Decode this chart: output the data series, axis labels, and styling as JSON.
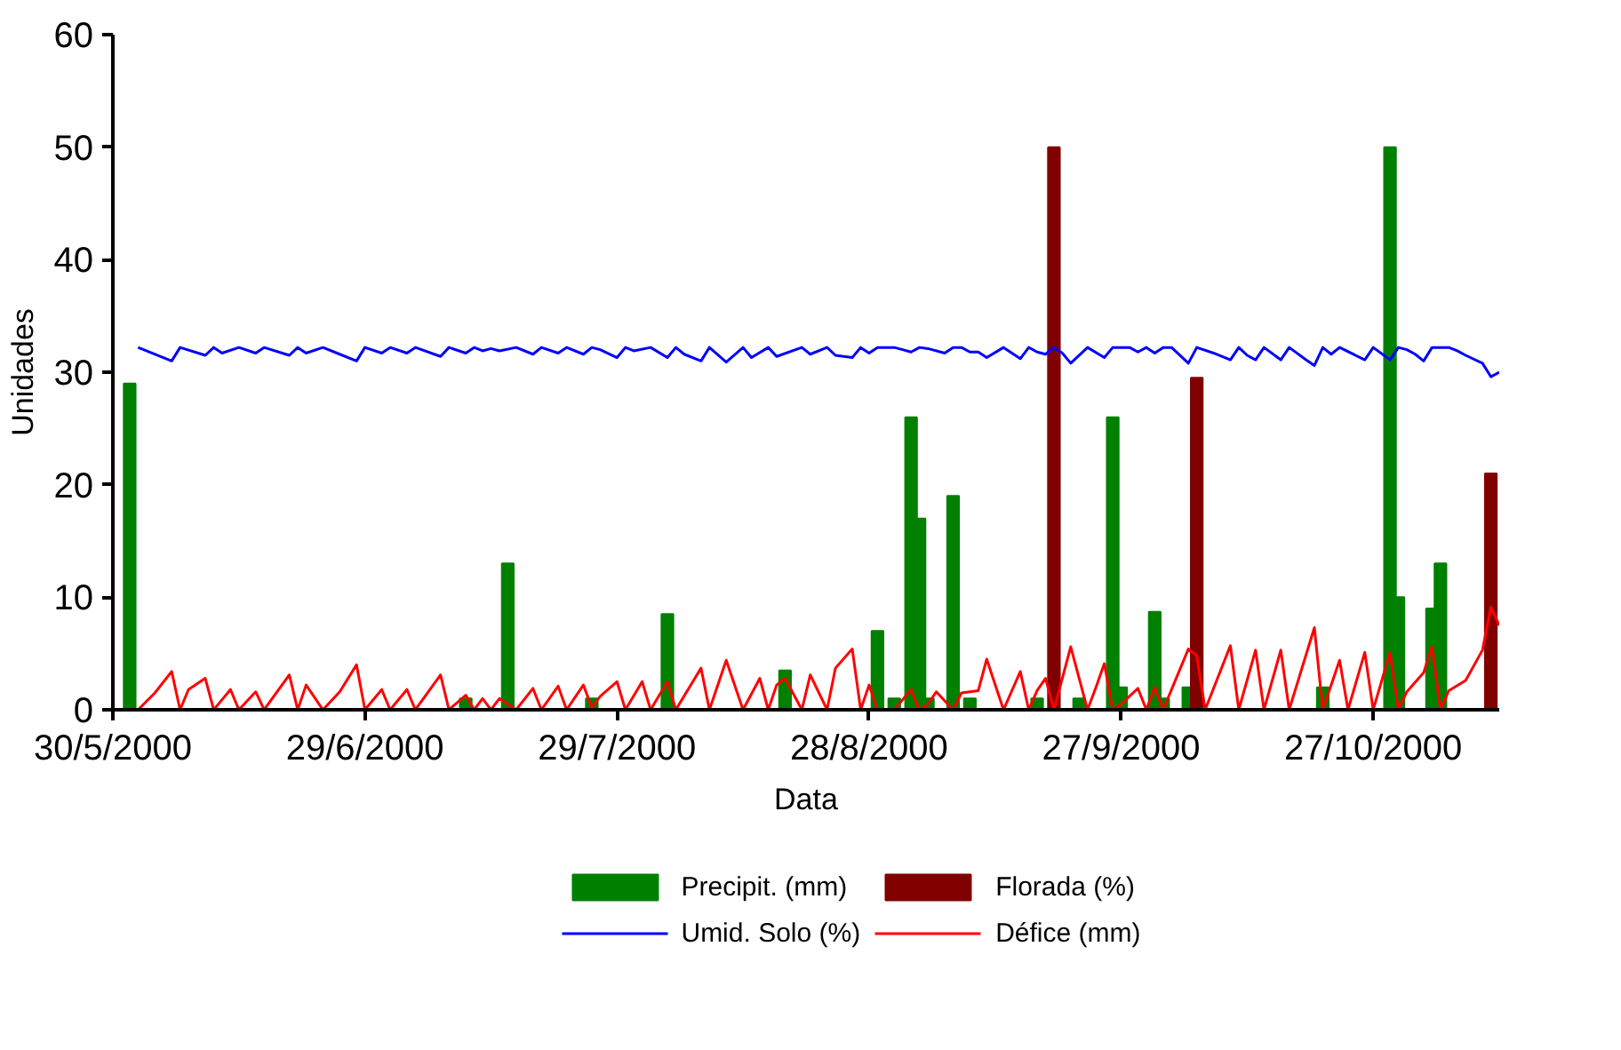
{
  "chart_data": {
    "type": "bar",
    "xlabel": "Data",
    "ylabel": "Unidades",
    "xlim": [
      "2000-05-30",
      "2000-11-11"
    ],
    "xticks": [
      {
        "value": "2000-05-30",
        "label": "30/5/2000"
      },
      {
        "value": "2000-06-29",
        "label": "29/6/2000"
      },
      {
        "value": "2000-07-29",
        "label": "29/7/2000"
      },
      {
        "value": "2000-08-28",
        "label": "28/8/2000"
      },
      {
        "value": "2000-09-27",
        "label": "27/9/2000"
      },
      {
        "value": "2000-10-27",
        "label": "27/10/2000"
      }
    ],
    "ylim": [
      0,
      60
    ],
    "yticks": [
      0,
      10,
      20,
      30,
      40,
      50,
      60
    ],
    "grid": false,
    "legend": "bottom",
    "series": [
      {
        "name": "Precipit. (mm)",
        "color": "#008000",
        "x": [
          "2000-06-01",
          "2000-07-11",
          "2000-07-16",
          "2000-07-26",
          "2000-08-04",
          "2000-08-18",
          "2000-08-29",
          "2000-08-31",
          "2000-09-02",
          "2000-09-03",
          "2000-09-04",
          "2000-09-07",
          "2000-09-09",
          "2000-09-17",
          "2000-09-22",
          "2000-09-26",
          "2000-09-27",
          "2000-10-01",
          "2000-10-02",
          "2000-10-05",
          "2000-10-21",
          "2000-10-29",
          "2000-10-30",
          "2000-11-03",
          "2000-11-04"
        ],
        "values": [
          29,
          1,
          13,
          1,
          8.5,
          3.5,
          7,
          1,
          26,
          17,
          1,
          19,
          1,
          1,
          1,
          26,
          2,
          8.7,
          1,
          2,
          2,
          50,
          10,
          9,
          13
        ]
      },
      {
        "name": "Florada (%)",
        "color": "#800000",
        "x": [
          "2000-09-19",
          "2000-10-06",
          "2000-11-10"
        ],
        "values": [
          50,
          29.5,
          21
        ]
      },
      {
        "name": "Umid. Solo (%)",
        "type": "line",
        "color": "#0000ff",
        "x": [
          "2000-06-02",
          "2000-06-06",
          "2000-06-07",
          "2000-06-10",
          "2000-06-11",
          "2000-06-12",
          "2000-06-14",
          "2000-06-16",
          "2000-06-17",
          "2000-06-20",
          "2000-06-21",
          "2000-06-22",
          "2000-06-24",
          "2000-06-26",
          "2000-06-28",
          "2000-06-29",
          "2000-07-01",
          "2000-07-02",
          "2000-07-04",
          "2000-07-05",
          "2000-07-08",
          "2000-07-09",
          "2000-07-11",
          "2000-07-12",
          "2000-07-13",
          "2000-07-14",
          "2000-07-15",
          "2000-07-17",
          "2000-07-19",
          "2000-07-20",
          "2000-07-22",
          "2000-07-23",
          "2000-07-25",
          "2000-07-26",
          "2000-07-27",
          "2000-07-29",
          "2000-07-30",
          "2000-07-31",
          "2000-08-02",
          "2000-08-04",
          "2000-08-05",
          "2000-08-06",
          "2000-08-08",
          "2000-08-09",
          "2000-08-11",
          "2000-08-13",
          "2000-08-14",
          "2000-08-16",
          "2000-08-17",
          "2000-08-20",
          "2000-08-21",
          "2000-08-23",
          "2000-08-24",
          "2000-08-26",
          "2000-08-27",
          "2000-08-28",
          "2000-08-29",
          "2000-08-31",
          "2000-09-02",
          "2000-09-03",
          "2000-09-04",
          "2000-09-06",
          "2000-09-07",
          "2000-09-08",
          "2000-09-09",
          "2000-09-10",
          "2000-09-11",
          "2000-09-13",
          "2000-09-15",
          "2000-09-16",
          "2000-09-17",
          "2000-09-18",
          "2000-09-19",
          "2000-09-20",
          "2000-09-21",
          "2000-09-23",
          "2000-09-25",
          "2000-09-26",
          "2000-09-28",
          "2000-09-29",
          "2000-09-30",
          "2000-10-01",
          "2000-10-02",
          "2000-10-03",
          "2000-10-05",
          "2000-10-06",
          "2000-10-08",
          "2000-10-10",
          "2000-10-11",
          "2000-10-12",
          "2000-10-13",
          "2000-10-14",
          "2000-10-16",
          "2000-10-17",
          "2000-10-19",
          "2000-10-20",
          "2000-10-21",
          "2000-10-22",
          "2000-10-23",
          "2000-10-26",
          "2000-10-27",
          "2000-10-29",
          "2000-10-30",
          "2000-10-31",
          "2000-11-01",
          "2000-11-02",
          "2000-11-03",
          "2000-11-05",
          "2000-11-06",
          "2000-11-07",
          "2000-11-09",
          "2000-11-10",
          "2000-11-11"
        ],
        "values": [
          32.2,
          31.0,
          32.2,
          31.5,
          32.2,
          31.7,
          32.2,
          31.7,
          32.2,
          31.5,
          32.2,
          31.7,
          32.2,
          31.6,
          31.0,
          32.2,
          31.7,
          32.2,
          31.7,
          32.2,
          31.4,
          32.2,
          31.7,
          32.2,
          31.9,
          32.1,
          31.9,
          32.2,
          31.6,
          32.2,
          31.7,
          32.2,
          31.6,
          32.2,
          32.0,
          31.3,
          32.2,
          31.9,
          32.2,
          31.3,
          32.2,
          31.6,
          31.0,
          32.2,
          30.9,
          32.2,
          31.3,
          32.2,
          31.4,
          32.2,
          31.6,
          32.2,
          31.5,
          31.3,
          32.2,
          31.7,
          32.2,
          32.2,
          31.8,
          32.2,
          32.1,
          31.7,
          32.2,
          32.2,
          31.8,
          31.8,
          31.3,
          32.2,
          31.2,
          32.2,
          31.8,
          31.6,
          32.2,
          31.7,
          30.8,
          32.2,
          31.3,
          32.2,
          32.2,
          31.8,
          32.2,
          31.7,
          32.2,
          32.2,
          30.8,
          32.2,
          31.7,
          31.1,
          32.2,
          31.5,
          31.1,
          32.2,
          31.1,
          32.2,
          31.1,
          30.6,
          32.2,
          31.6,
          32.2,
          31.1,
          32.2,
          31.1,
          32.2,
          32.0,
          31.6,
          31.0,
          32.2,
          32.2,
          31.9,
          31.5,
          30.8,
          29.6,
          30.0
        ]
      },
      {
        "name": "Défice (mm)",
        "type": "line",
        "color": "#ff0000",
        "x": [
          "2000-06-02",
          "2000-06-04",
          "2000-06-06",
          "2000-06-07",
          "2000-06-08",
          "2000-06-10",
          "2000-06-11",
          "2000-06-13",
          "2000-06-14",
          "2000-06-16",
          "2000-06-17",
          "2000-06-20",
          "2000-06-21",
          "2000-06-22",
          "2000-06-24",
          "2000-06-26",
          "2000-06-28",
          "2000-06-29",
          "2000-07-01",
          "2000-07-02",
          "2000-07-04",
          "2000-07-05",
          "2000-07-08",
          "2000-07-09",
          "2000-07-11",
          "2000-07-12",
          "2000-07-13",
          "2000-07-14",
          "2000-07-15",
          "2000-07-17",
          "2000-07-19",
          "2000-07-20",
          "2000-07-22",
          "2000-07-23",
          "2000-07-25",
          "2000-07-26",
          "2000-07-27",
          "2000-07-29",
          "2000-07-30",
          "2000-08-01",
          "2000-08-02",
          "2000-08-04",
          "2000-08-05",
          "2000-08-08",
          "2000-08-09",
          "2000-08-11",
          "2000-08-13",
          "2000-08-15",
          "2000-08-16",
          "2000-08-17",
          "2000-08-18",
          "2000-08-20",
          "2000-08-21",
          "2000-08-23",
          "2000-08-24",
          "2000-08-26",
          "2000-08-27",
          "2000-08-28",
          "2000-08-29",
          "2000-08-31",
          "2000-09-02",
          "2000-09-03",
          "2000-09-04",
          "2000-09-05",
          "2000-09-07",
          "2000-09-08",
          "2000-09-10",
          "2000-09-11",
          "2000-09-13",
          "2000-09-15",
          "2000-09-16",
          "2000-09-17",
          "2000-09-18",
          "2000-09-19",
          "2000-09-21",
          "2000-09-23",
          "2000-09-24",
          "2000-09-25",
          "2000-09-26",
          "2000-09-27",
          "2000-09-29",
          "2000-09-30",
          "2000-10-01",
          "2000-10-02",
          "2000-10-05",
          "2000-10-06",
          "2000-10-07",
          "2000-10-10",
          "2000-10-11",
          "2000-10-13",
          "2000-10-14",
          "2000-10-16",
          "2000-10-17",
          "2000-10-20",
          "2000-10-21",
          "2000-10-23",
          "2000-10-24",
          "2000-10-26",
          "2000-10-27",
          "2000-10-29",
          "2000-10-30",
          "2000-10-31",
          "2000-11-02",
          "2000-11-03",
          "2000-11-04",
          "2000-11-05",
          "2000-11-07",
          "2000-11-09",
          "2000-11-10",
          "2000-11-11"
        ],
        "values": [
          0,
          1.5,
          3.4,
          0,
          1.8,
          2.8,
          0,
          1.8,
          0,
          1.6,
          0,
          3.1,
          0,
          2.2,
          0,
          1.6,
          4.0,
          0,
          1.8,
          0,
          1.8,
          0,
          3.1,
          0,
          1.3,
          0,
          1.0,
          0,
          1.0,
          0,
          1.9,
          0,
          2.1,
          0,
          2.2,
          0.2,
          1.2,
          2.5,
          0,
          2.5,
          0,
          2.5,
          0,
          3.7,
          0,
          4.4,
          0,
          2.8,
          0,
          2.2,
          2.8,
          0,
          3.1,
          0,
          3.7,
          5.4,
          0,
          2.2,
          0,
          0,
          1.8,
          0,
          0.5,
          1.6,
          0,
          1.5,
          1.7,
          4.5,
          0,
          3.4,
          0,
          1.7,
          2.8,
          0,
          5.6,
          0,
          2.0,
          4.1,
          0,
          0.5,
          1.9,
          0,
          2.0,
          0,
          5.4,
          4.8,
          0,
          5.7,
          0,
          5.3,
          0,
          5.3,
          0,
          7.3,
          0,
          4.4,
          0,
          5.1,
          0,
          5.1,
          0,
          1.6,
          3.3,
          5.6,
          0,
          1.7,
          2.6,
          5.3,
          9.1,
          7.5
        ]
      }
    ]
  }
}
